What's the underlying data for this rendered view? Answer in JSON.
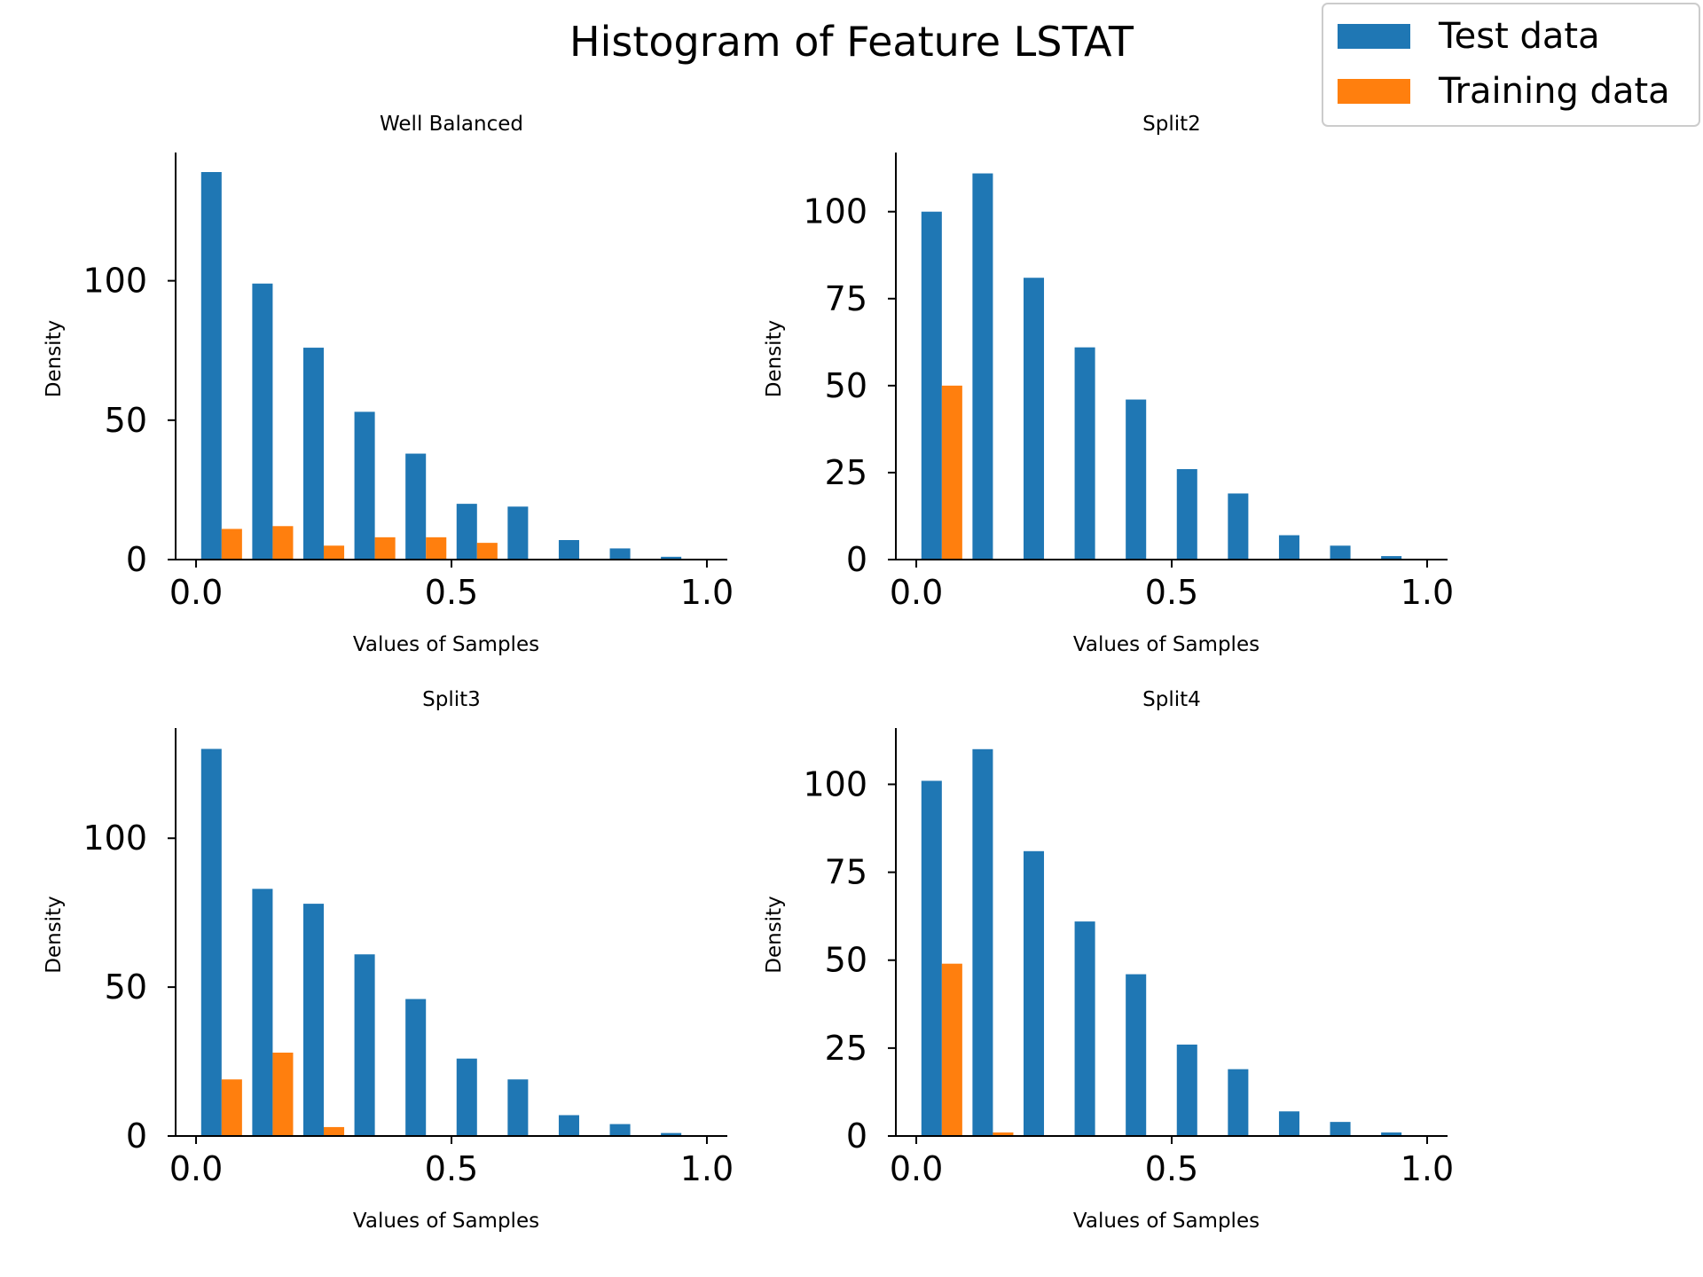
{
  "figure": {
    "title": "Histogram of Feature LSTAT"
  },
  "legend": {
    "placement": "top-right",
    "entries": [
      {
        "label": "Test data",
        "color": "#1f77b4"
      },
      {
        "label": "Training data",
        "color": "#ff7f0e"
      }
    ]
  },
  "chart_data": [
    {
      "type": "bar",
      "title": "Well Balanced",
      "xlabel": "Values of Samples",
      "ylabel": "Density",
      "xlim": [
        -0.04,
        1.04
      ],
      "ylim": [
        0,
        146
      ],
      "xticks": [
        0.0,
        0.5,
        1.0
      ],
      "xtick_labels": [
        "0.0",
        "0.5",
        "1.0"
      ],
      "yticks": [
        0,
        50,
        100
      ],
      "ytick_labels": [
        "0",
        "50",
        "100"
      ],
      "bin_edges": [
        0,
        0.1,
        0.2,
        0.3,
        0.4,
        0.5,
        0.6,
        0.7,
        0.8,
        0.9,
        1.0
      ],
      "series": [
        {
          "name": "Test data",
          "color": "#1f77b4",
          "values": [
            139,
            99,
            76,
            53,
            38,
            20,
            19,
            7,
            4,
            1
          ]
        },
        {
          "name": "Training data",
          "color": "#ff7f0e",
          "values": [
            11,
            12,
            5,
            8,
            8,
            6,
            0,
            0,
            0,
            0
          ]
        }
      ]
    },
    {
      "type": "bar",
      "title": "Split2",
      "xlabel": "Values of Samples",
      "ylabel": "Density",
      "xlim": [
        -0.04,
        1.04
      ],
      "ylim": [
        0,
        117
      ],
      "xticks": [
        0.0,
        0.5,
        1.0
      ],
      "xtick_labels": [
        "0.0",
        "0.5",
        "1.0"
      ],
      "yticks": [
        0,
        25,
        50,
        75,
        100
      ],
      "ytick_labels": [
        "0",
        "25",
        "50",
        "75",
        "100"
      ],
      "bin_edges": [
        0,
        0.1,
        0.2,
        0.3,
        0.4,
        0.5,
        0.6,
        0.7,
        0.8,
        0.9,
        1.0
      ],
      "series": [
        {
          "name": "Test data",
          "color": "#1f77b4",
          "values": [
            100,
            111,
            81,
            61,
            46,
            26,
            19,
            7,
            4,
            1
          ]
        },
        {
          "name": "Training data",
          "color": "#ff7f0e",
          "values": [
            50,
            0,
            0,
            0,
            0,
            0,
            0,
            0,
            0,
            0
          ]
        }
      ]
    },
    {
      "type": "bar",
      "title": "Split3",
      "xlabel": "Values of Samples",
      "ylabel": "Density",
      "xlim": [
        -0.04,
        1.04
      ],
      "ylim": [
        0,
        137
      ],
      "xticks": [
        0.0,
        0.5,
        1.0
      ],
      "xtick_labels": [
        "0.0",
        "0.5",
        "1.0"
      ],
      "yticks": [
        0,
        50,
        100
      ],
      "ytick_labels": [
        "0",
        "50",
        "100"
      ],
      "bin_edges": [
        0,
        0.1,
        0.2,
        0.3,
        0.4,
        0.5,
        0.6,
        0.7,
        0.8,
        0.9,
        1.0
      ],
      "series": [
        {
          "name": "Test data",
          "color": "#1f77b4",
          "values": [
            130,
            83,
            78,
            61,
            46,
            26,
            19,
            7,
            4,
            1
          ]
        },
        {
          "name": "Training data",
          "color": "#ff7f0e",
          "values": [
            19,
            28,
            3,
            0,
            0,
            0,
            0,
            0,
            0,
            0
          ]
        }
      ]
    },
    {
      "type": "bar",
      "title": "Split4",
      "xlabel": "Values of Samples",
      "ylabel": "Density",
      "xlim": [
        -0.04,
        1.04
      ],
      "ylim": [
        0,
        116
      ],
      "xticks": [
        0.0,
        0.5,
        1.0
      ],
      "xtick_labels": [
        "0.0",
        "0.5",
        "1.0"
      ],
      "yticks": [
        0,
        25,
        50,
        75,
        100
      ],
      "ytick_labels": [
        "0",
        "25",
        "50",
        "75",
        "100"
      ],
      "bin_edges": [
        0,
        0.1,
        0.2,
        0.3,
        0.4,
        0.5,
        0.6,
        0.7,
        0.8,
        0.9,
        1.0
      ],
      "series": [
        {
          "name": "Test data",
          "color": "#1f77b4",
          "values": [
            101,
            110,
            81,
            61,
            46,
            26,
            19,
            7,
            4,
            1
          ]
        },
        {
          "name": "Training data",
          "color": "#ff7f0e",
          "values": [
            49,
            1,
            0,
            0,
            0,
            0,
            0,
            0,
            0,
            0
          ]
        }
      ]
    }
  ]
}
